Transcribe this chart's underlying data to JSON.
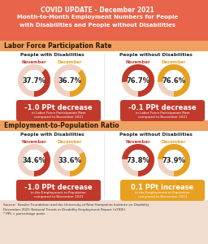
{
  "title_line1": "COVID UPDATE - December 2021",
  "title_line2": "Month-to-Month Employment Numbers for People",
  "title_line3": "with Disabilities and People without Disabilities",
  "header_bg": "#E8644A",
  "section1_label": "Labor Force Participation Rate",
  "section2_label": "Employment-to-Population Ratio",
  "section_label_bg": "#F0A060",
  "section_label_color": "#2A1800",
  "people_with_dis": "People with Disabilities",
  "people_without_dis": "People without Disabilities",
  "nov_label": "November",
  "dec_label": "December",
  "nov_color": "#C0392B",
  "dec_color": "#E8A020",
  "donut_bg": "#F0D0C0",
  "lfpr_pwd_nov": 37.7,
  "lfpr_pwd_dec": 36.7,
  "lfpr_pwod_nov": 76.7,
  "lfpr_pwod_dec": 76.6,
  "etpr_pwd_nov": 34.6,
  "etpr_pwd_dec": 33.6,
  "etpr_pwod_nov": 73.8,
  "etpr_pwod_dec": 73.9,
  "lfpr_pwd_change": "-1.0 PPt decrease",
  "lfpr_pwd_change_sub": "in Labor Force Participation Rate\ncompared to November 2021",
  "lfpr_pwod_change": "-0.1 PPt decrease",
  "lfpr_pwod_change_sub": "in Labor Force Participation Rate\ncompared to November 2021",
  "etpr_pwd_change": "-1.0 PPt decrease",
  "etpr_pwd_change_sub": "in the Employment to Population\ncompared to November 2021",
  "etpr_pwod_change": "0.1 PPt increase",
  "etpr_pwod_change_sub": "in the Employment to Population\ncompared to November 2021",
  "change_bg_decrease": "#C0392B",
  "change_bg_increase": "#E8A020",
  "source_text_bold": "Source: ",
  "source_text": " Kessler Foundation and the University of New Hampshire Institute on Disability\nDecember 2021 National Trends in Disability Employment Report (nTIDE)\n* PPt = percentage point",
  "source_bg": "#F0DDD0",
  "body_bg": "#FFFFFF",
  "title_text_color": "#FFFFFF"
}
